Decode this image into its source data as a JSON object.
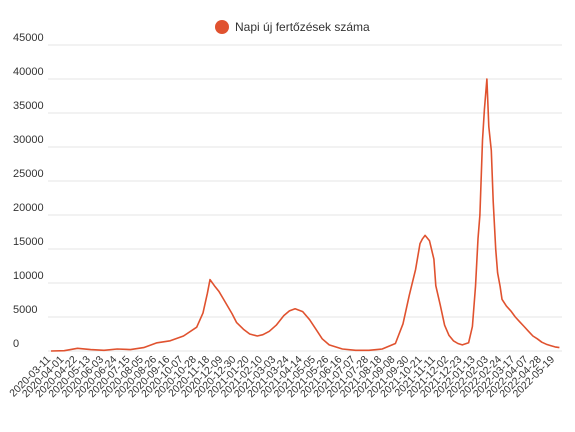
{
  "chart_data": {
    "type": "line",
    "title": "",
    "xlabel": "",
    "ylabel": "",
    "ylim": [
      0,
      45000
    ],
    "y_ticks": [
      0,
      5000,
      10000,
      15000,
      20000,
      25000,
      30000,
      35000,
      40000,
      45000
    ],
    "y_tick_labels": [
      "0",
      "5000",
      "10000",
      "15000",
      "20000",
      "25000",
      "30000",
      "35000",
      "40000",
      "45000"
    ],
    "grid": true,
    "legend_position": "top-center",
    "x_tick_labels": [
      "2020-03-11",
      "2020-04-01",
      "2020-04-22",
      "2020-05-13",
      "2020-06-03",
      "2020-06-24",
      "2020-07-15",
      "2020-08-05",
      "2020-08-26",
      "2020-09-16",
      "2020-10-07",
      "2020-10-28",
      "2020-11-18",
      "2020-12-09",
      "2020-12-30",
      "2021-01-20",
      "2021-02-10",
      "2021-03-03",
      "2021-03-24",
      "2021-04-14",
      "2021-05-05",
      "2021-05-26",
      "2021-06-16",
      "2021-07-07",
      "2021-07-28",
      "2021-08-18",
      "2021-09-08",
      "2021-09-30",
      "2021-10-21",
      "2021-11-11",
      "2021-12-02",
      "2021-12-23",
      "2022-01-13",
      "2022-02-03",
      "2022-02-24",
      "2022-03-17",
      "2022-04-07",
      "2022-04-28",
      "2022-05-19"
    ],
    "series": [
      {
        "name": "Napi új fertőzések száma",
        "color": "#e0522f",
        "x": [
          "2020-03-11",
          "2020-04-01",
          "2020-04-22",
          "2020-05-13",
          "2020-06-03",
          "2020-06-24",
          "2020-07-15",
          "2020-08-05",
          "2020-08-26",
          "2020-09-16",
          "2020-10-07",
          "2020-10-28",
          "2020-11-07",
          "2020-11-14",
          "2020-11-18",
          "2020-11-25",
          "2020-12-02",
          "2020-12-09",
          "2020-12-16",
          "2020-12-23",
          "2020-12-30",
          "2021-01-10",
          "2021-01-20",
          "2021-02-01",
          "2021-02-10",
          "2021-02-20",
          "2021-03-03",
          "2021-03-15",
          "2021-03-24",
          "2021-04-02",
          "2021-04-14",
          "2021-04-25",
          "2021-05-05",
          "2021-05-15",
          "2021-05-26",
          "2021-06-16",
          "2021-07-07",
          "2021-07-28",
          "2021-08-18",
          "2021-09-08",
          "2021-09-20",
          "2021-09-30",
          "2021-10-10",
          "2021-10-17",
          "2021-10-21",
          "2021-10-25",
          "2021-11-01",
          "2021-11-08",
          "2021-11-11",
          "2021-11-18",
          "2021-11-25",
          "2021-12-02",
          "2021-12-09",
          "2021-12-16",
          "2021-12-23",
          "2022-01-02",
          "2022-01-08",
          "2022-01-13",
          "2022-01-17",
          "2022-01-20",
          "2022-01-24",
          "2022-01-27",
          "2022-01-31",
          "2022-02-03",
          "2022-02-07",
          "2022-02-10",
          "2022-02-14",
          "2022-02-17",
          "2022-02-21",
          "2022-02-24",
          "2022-03-03",
          "2022-03-10",
          "2022-03-17",
          "2022-03-24",
          "2022-03-31",
          "2022-04-07",
          "2022-04-14",
          "2022-04-21",
          "2022-04-28",
          "2022-05-05",
          "2022-05-12",
          "2022-05-19",
          "2022-05-26"
        ],
        "values": [
          0,
          50,
          400,
          200,
          100,
          300,
          200,
          500,
          1200,
          1500,
          2200,
          3500,
          5600,
          8500,
          10500,
          9600,
          8800,
          7700,
          6600,
          5500,
          4200,
          3200,
          2500,
          2200,
          2400,
          2900,
          3800,
          5200,
          5900,
          6200,
          5800,
          4600,
          3200,
          1800,
          900,
          300,
          100,
          100,
          300,
          1100,
          4000,
          8200,
          12000,
          15800,
          16500,
          17000,
          16200,
          13500,
          9600,
          6800,
          3800,
          2300,
          1500,
          1100,
          900,
          1200,
          3600,
          9500,
          16500,
          20000,
          31000,
          35500,
          40000,
          33000,
          29500,
          22000,
          15000,
          11500,
          9500,
          7600,
          6600,
          5900,
          5000,
          4300,
          3600,
          2900,
          2200,
          1800,
          1300,
          1000,
          800,
          600,
          500
        ]
      }
    ]
  }
}
